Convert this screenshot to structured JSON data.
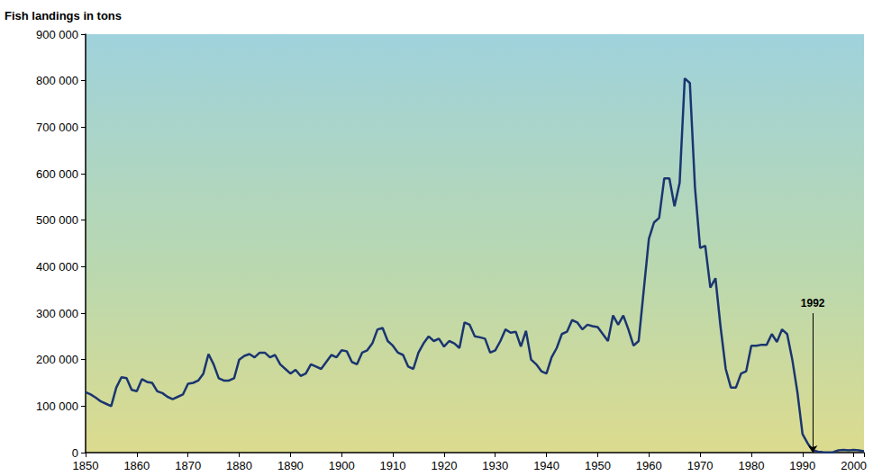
{
  "chart_data": {
    "type": "line",
    "y_label": "Fish landings in tons",
    "x": [
      1850,
      1851,
      1852,
      1853,
      1854,
      1855,
      1856,
      1857,
      1858,
      1859,
      1860,
      1861,
      1862,
      1863,
      1864,
      1865,
      1866,
      1867,
      1868,
      1869,
      1870,
      1871,
      1872,
      1873,
      1874,
      1875,
      1876,
      1877,
      1878,
      1879,
      1880,
      1881,
      1882,
      1883,
      1884,
      1885,
      1886,
      1887,
      1888,
      1889,
      1890,
      1891,
      1892,
      1893,
      1894,
      1895,
      1896,
      1897,
      1898,
      1899,
      1900,
      1901,
      1902,
      1903,
      1904,
      1905,
      1906,
      1907,
      1908,
      1909,
      1910,
      1911,
      1912,
      1913,
      1914,
      1915,
      1916,
      1917,
      1918,
      1919,
      1920,
      1921,
      1922,
      1923,
      1924,
      1925,
      1926,
      1927,
      1928,
      1929,
      1930,
      1931,
      1932,
      1933,
      1934,
      1935,
      1936,
      1937,
      1938,
      1939,
      1940,
      1941,
      1942,
      1943,
      1944,
      1945,
      1946,
      1947,
      1948,
      1949,
      1950,
      1951,
      1952,
      1953,
      1954,
      1955,
      1956,
      1957,
      1958,
      1959,
      1960,
      1961,
      1962,
      1963,
      1964,
      1965,
      1966,
      1967,
      1968,
      1969,
      1970,
      1971,
      1972,
      1973,
      1974,
      1975,
      1976,
      1977,
      1978,
      1979,
      1980,
      1981,
      1982,
      1983,
      1984,
      1985,
      1986,
      1987,
      1988,
      1989,
      1990,
      1991,
      1992,
      1993,
      1994,
      1995,
      1996,
      1997,
      1998,
      1999,
      2000,
      2001,
      2002
    ],
    "values": [
      130000,
      125000,
      118000,
      110000,
      105000,
      100000,
      140000,
      162000,
      160000,
      135000,
      132000,
      158000,
      152000,
      150000,
      132000,
      128000,
      120000,
      115000,
      120000,
      125000,
      148000,
      150000,
      155000,
      170000,
      212000,
      190000,
      160000,
      155000,
      155000,
      160000,
      200000,
      208000,
      212000,
      205000,
      215000,
      215000,
      205000,
      210000,
      190000,
      180000,
      170000,
      178000,
      165000,
      170000,
      190000,
      185000,
      180000,
      195000,
      210000,
      205000,
      220000,
      218000,
      195000,
      190000,
      215000,
      220000,
      235000,
      265000,
      268000,
      240000,
      230000,
      215000,
      210000,
      185000,
      180000,
      215000,
      235000,
      250000,
      240000,
      245000,
      228000,
      240000,
      235000,
      225000,
      280000,
      275000,
      250000,
      248000,
      245000,
      215000,
      220000,
      240000,
      265000,
      258000,
      260000,
      228000,
      262000,
      200000,
      190000,
      175000,
      170000,
      205000,
      225000,
      255000,
      260000,
      285000,
      280000,
      265000,
      275000,
      272000,
      270000,
      255000,
      240000,
      295000,
      275000,
      295000,
      265000,
      230000,
      240000,
      350000,
      460000,
      495000,
      505000,
      590000,
      590000,
      530000,
      580000,
      805000,
      795000,
      570000,
      440000,
      445000,
      355000,
      375000,
      270000,
      180000,
      140000,
      140000,
      170000,
      175000,
      230000,
      230000,
      232000,
      232000,
      255000,
      238000,
      265000,
      255000,
      200000,
      130000,
      40000,
      20000,
      5000,
      2000,
      1000,
      500,
      1000,
      5000,
      6000,
      5000,
      6000,
      5000,
      3000
    ],
    "color": "#1a3570",
    "xlim": [
      1850,
      2002
    ],
    "xticks": [
      1850,
      1860,
      1870,
      1880,
      1890,
      1900,
      1910,
      1920,
      1930,
      1940,
      1950,
      1960,
      1970,
      1980,
      1990,
      2000
    ],
    "ylim": [
      0,
      900000
    ],
    "yticks": [
      0,
      {
        "value": 100000,
        "label": "100 000"
      },
      {
        "value": 200000,
        "label": "200 000"
      },
      {
        "value": 300000,
        "label": "300 000"
      },
      {
        "value": 400000,
        "label": "400 000"
      },
      {
        "value": 500000,
        "label": "500 000"
      },
      {
        "value": 600000,
        "label": "600 000"
      },
      {
        "value": 700000,
        "label": "700 000"
      },
      {
        "value": 800000,
        "label": "800 000"
      },
      {
        "value": 900000,
        "label": "900 000"
      }
    ],
    "grid": false,
    "annotations": [
      {
        "text": "1992",
        "x": 1992,
        "y": 300000,
        "arrow_to": 0
      }
    ]
  }
}
